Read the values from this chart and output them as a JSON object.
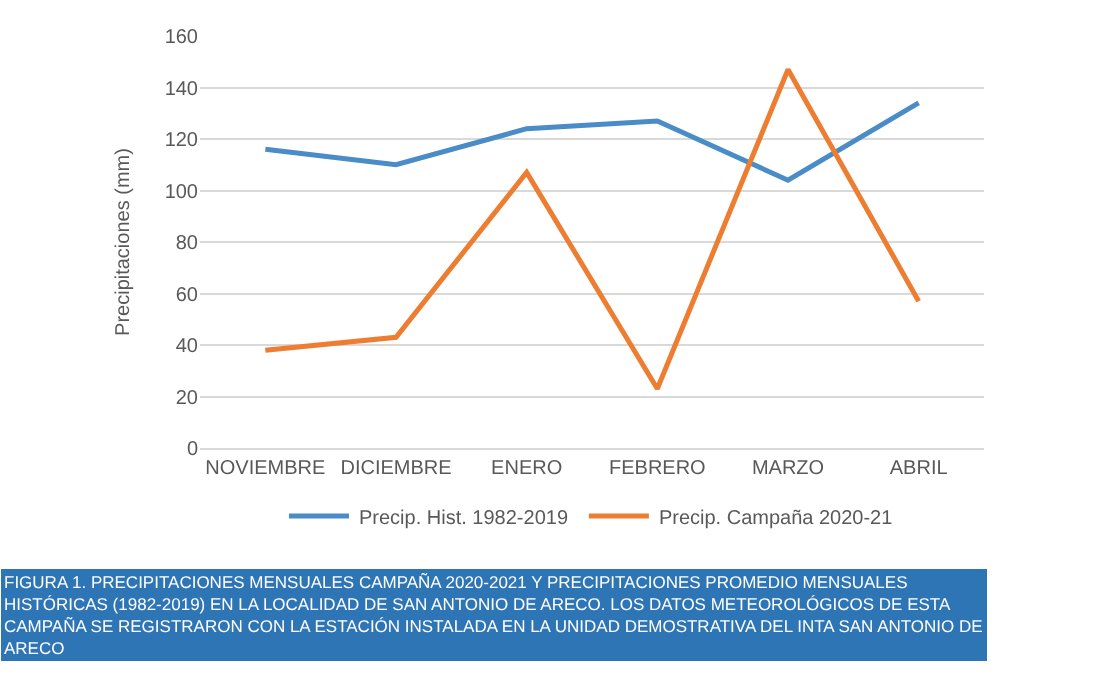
{
  "chart_data": {
    "type": "line",
    "categories": [
      "NOVIEMBRE",
      "DICIEMBRE",
      "ENERO",
      "FEBRERO",
      "MARZO",
      "ABRIL"
    ],
    "series": [
      {
        "name": "Precip. Hist. 1982-2019",
        "color": "#4a8cc7",
        "values": [
          116,
          110,
          124,
          127,
          104,
          134
        ]
      },
      {
        "name": "Precip. Campaña 2020-21",
        "color": "#ed7d31",
        "values": [
          38,
          43,
          107,
          23,
          147,
          57
        ]
      }
    ],
    "ylabel": "Precipitaciones (mm)",
    "ylim": [
      0,
      160
    ],
    "yticks": [
      0,
      20,
      40,
      60,
      80,
      100,
      120,
      140,
      160
    ],
    "grid": "y",
    "legend": "bottom",
    "marker": "none",
    "line_style": "solid",
    "annotations": [
      "FIGURA 1. PRECIPITACIONES MENSUALES CAMPAÑA 2020-2021 Y PRECIPITACIONES PROMEDIO MENSUALES HISTÓRICAS (1982-2019) EN LA LOCALIDAD DE SAN ANTONIO DE ARECO. LOS DATOS METEOROLÓGICOS DE ESTA CAMPAÑA SE REGISTRARON CON LA ESTACIÓN INSTALADA EN LA UNIDAD DEMOSTRATIVA DEL INTA SAN ANTONIO DE ARECO"
    ]
  }
}
